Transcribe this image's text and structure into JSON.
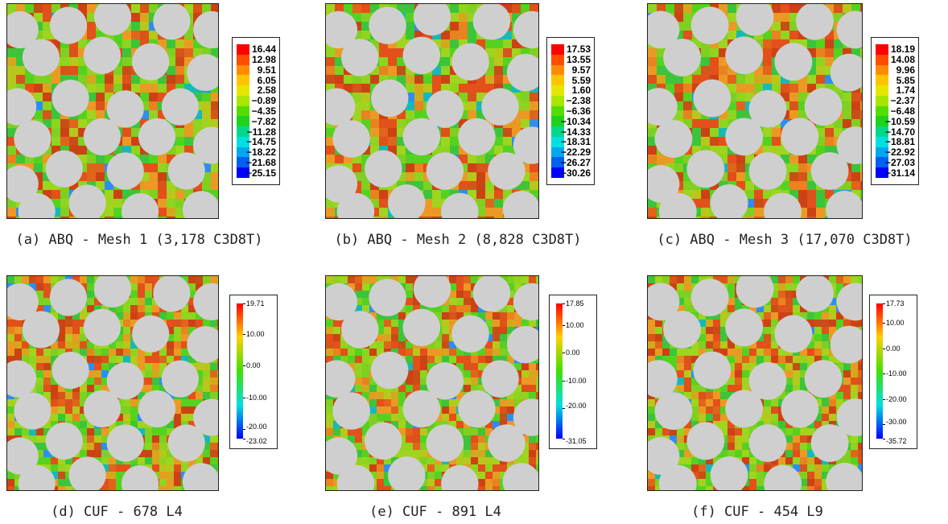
{
  "panels": [
    {
      "id": "a",
      "caption": "(a) ABQ - Mesh 1 (3,178 C3D8T)",
      "legend_style": "abq",
      "legend_labels": [
        "16.44",
        "12.98",
        "9.51",
        "6.05",
        "2.58",
        "−0.89",
        "−4.35",
        "−7.82",
        "−11.28",
        "−14.75",
        "−18.22",
        "−21.68",
        "−25.15"
      ]
    },
    {
      "id": "b",
      "caption": "(b) ABQ - Mesh 2 (8,828 C3D8T)",
      "legend_style": "abq",
      "legend_labels": [
        "17.53",
        "13.55",
        "9.57",
        "5.59",
        "1.60",
        "−2.38",
        "−6.36",
        "−10.34",
        "−14.33",
        "−18.31",
        "−22.29",
        "−26.27",
        "−30.26"
      ]
    },
    {
      "id": "c",
      "caption": "(c) ABQ - Mesh 3 (17,070 C3D8T)",
      "legend_style": "abq",
      "legend_labels": [
        "18.19",
        "14.08",
        "9.96",
        "5.85",
        "1.74",
        "−2.37",
        "−6.48",
        "−10.59",
        "−14.70",
        "−18.81",
        "−22.92",
        "−27.03",
        "−31.14"
      ]
    },
    {
      "id": "d",
      "caption": "(d) CUF - 678 L4",
      "legend_style": "cuf",
      "legend_min": -23.02,
      "legend_max": 19.71,
      "legend_labels": [
        "19.71",
        "10.00",
        "0.00",
        "-10.00",
        "-20.00",
        "-23.02"
      ]
    },
    {
      "id": "e",
      "caption": "(e) CUF - 891 L4",
      "legend_style": "cuf",
      "legend_min": -31.05,
      "legend_max": 17.85,
      "legend_labels": [
        "17.85",
        "10.00",
        "0.00",
        "-10.00",
        "-20.00",
        "-31.05"
      ]
    },
    {
      "id": "f",
      "caption": "(f) CUF - 454 L9",
      "legend_style": "cuf",
      "legend_min": -35.72,
      "legend_max": 17.73,
      "legend_labels": [
        "17.73",
        "10.00",
        "0.00",
        "-10.00",
        "-20.00",
        "-30.00",
        "-35.72"
      ]
    }
  ],
  "colors": {
    "fiber": "#cfcfcf",
    "abq_bands": [
      "#ff0000",
      "#ff4c00",
      "#ff8c00",
      "#ffc400",
      "#e6e600",
      "#a8e600",
      "#55dd00",
      "#1ed21e",
      "#00d98c",
      "#00e0e0",
      "#00a8f0",
      "#0060f0",
      "#0000ff"
    ]
  }
}
